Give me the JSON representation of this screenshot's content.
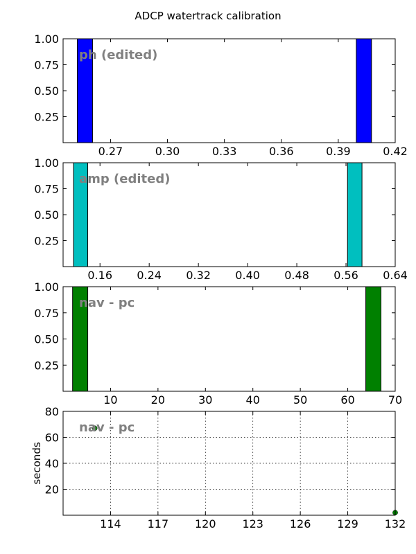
{
  "figure": {
    "title": "ADCP watertrack calibration"
  },
  "chart_data": [
    {
      "type": "bar",
      "label": "ph (edited)",
      "color": "#0000ff",
      "xlim": [
        0.245,
        0.42
      ],
      "ylim": [
        0,
        1.0
      ],
      "xticks": [
        "0.27",
        "0.30",
        "0.33",
        "0.36",
        "0.39",
        "0.42"
      ],
      "yticks": [
        "0.25",
        "0.50",
        "0.75",
        "1.00"
      ],
      "bars": [
        {
          "x0": 0.2525,
          "x1": 0.2605,
          "value": 1.0
        },
        {
          "x0": 0.3995,
          "x1": 0.4075,
          "value": 1.0
        }
      ],
      "grid": false
    },
    {
      "type": "bar",
      "label": "amp (edited)",
      "color": "#00bfbf",
      "xlim": [
        0.1,
        0.64
      ],
      "ylim": [
        0,
        1.0
      ],
      "xticks": [
        "0.16",
        "0.24",
        "0.32",
        "0.40",
        "0.48",
        "0.56",
        "0.64"
      ],
      "yticks": [
        "0.25",
        "0.50",
        "0.75",
        "1.00"
      ],
      "bars": [
        {
          "x0": 0.117,
          "x1": 0.14,
          "value": 1.0
        },
        {
          "x0": 0.5625,
          "x1": 0.586,
          "value": 1.0
        }
      ],
      "grid": false
    },
    {
      "type": "bar",
      "label": "nav - pc",
      "color": "#008000",
      "xlim": [
        0,
        70
      ],
      "ylim": [
        0,
        1.0
      ],
      "xticks": [
        "10",
        "20",
        "30",
        "40",
        "50",
        "60",
        "70"
      ],
      "yticks": [
        "0.25",
        "0.50",
        "0.75",
        "1.00"
      ],
      "bars": [
        {
          "x0": 2.0,
          "x1": 5.2,
          "value": 1.0
        },
        {
          "x0": 63.8,
          "x1": 67.0,
          "value": 1.0
        }
      ],
      "grid": false
    },
    {
      "type": "scatter",
      "label": "nav - pc",
      "color": "#008000",
      "ylabel": "seconds",
      "xlim": [
        111,
        132
      ],
      "ylim": [
        0,
        80
      ],
      "xticks": [
        "114",
        "117",
        "120",
        "123",
        "126",
        "129",
        "132"
      ],
      "yticks": [
        "20",
        "40",
        "60",
        "80"
      ],
      "points": [
        {
          "x": 113.0,
          "y": 67
        },
        {
          "x": 132.0,
          "y": 2
        }
      ],
      "grid": true
    }
  ]
}
